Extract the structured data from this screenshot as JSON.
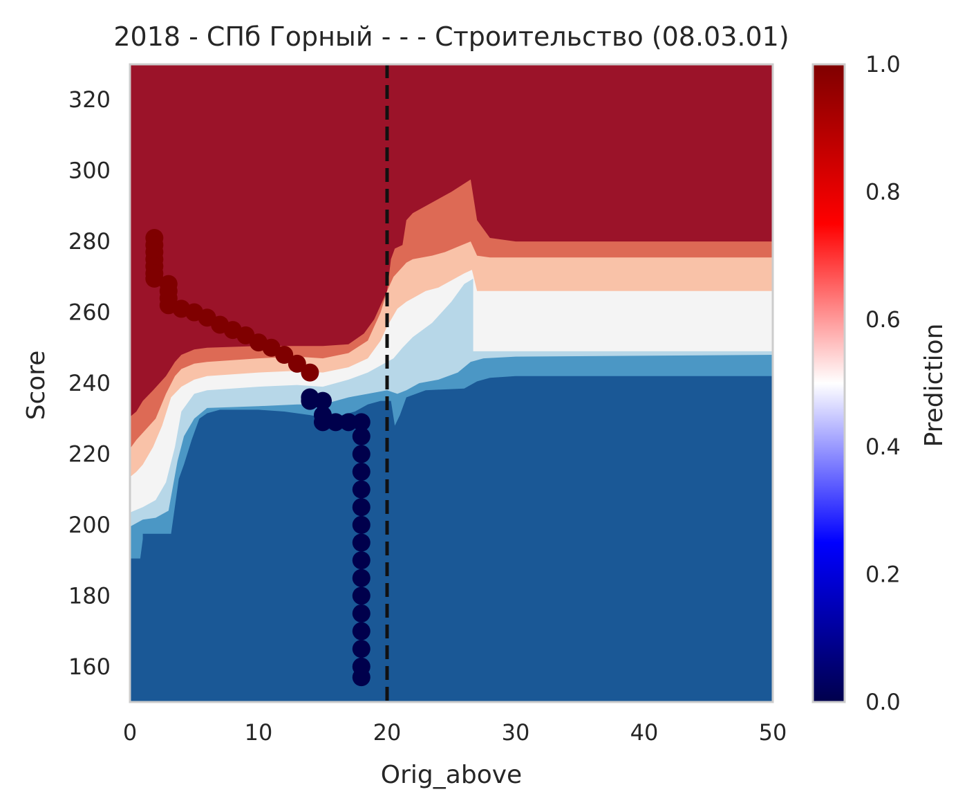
{
  "chart_data": {
    "type": "heatmap",
    "title": "2018 - СПб Горный - - - Строительство (08.03.01)",
    "xlabel": "Orig_above",
    "ylabel": "Score",
    "xlim": [
      0,
      50
    ],
    "ylim": [
      150,
      330
    ],
    "xticks": [
      0,
      10,
      20,
      30,
      40,
      50
    ],
    "yticks": [
      160,
      180,
      200,
      220,
      240,
      260,
      280,
      300,
      320
    ],
    "grid": false,
    "colorbar": {
      "label": "Prediction",
      "range": [
        0,
        1
      ],
      "ticks": [
        "0.0",
        "0.2",
        "0.4",
        "0.6",
        "0.8",
        "1.0"
      ],
      "colormap": "seismic"
    },
    "contour_levels": [
      0.125,
      0.25,
      0.375,
      0.5,
      0.625,
      0.75,
      0.875
    ],
    "contour_colors": [
      "#1a5896",
      "#4b97c5",
      "#b7d7e8",
      "#f4f4f4",
      "#f9c2a8",
      "#dd6a55",
      "#9b1329"
    ],
    "contour_boundaries": [
      {
        "name": "0.25",
        "points": [
          [
            0,
            190.5
          ],
          [
            0.8,
            190.5
          ],
          [
            1.0,
            196
          ],
          [
            1.0,
            197.5
          ],
          [
            3.2,
            197.5
          ],
          [
            3.8,
            213
          ],
          [
            4.2,
            217
          ],
          [
            4.8,
            224
          ],
          [
            5.4,
            230
          ],
          [
            6,
            231.5
          ],
          [
            7,
            232.5
          ],
          [
            10,
            232.5
          ],
          [
            12,
            232
          ],
          [
            14,
            231
          ],
          [
            15.5,
            230
          ],
          [
            17.5,
            232
          ],
          [
            18.5,
            234
          ],
          [
            19.5,
            235
          ],
          [
            20.3,
            235
          ],
          [
            20.6,
            228
          ],
          [
            21,
            231
          ],
          [
            21.5,
            236
          ],
          [
            23,
            238
          ],
          [
            26,
            238.5
          ],
          [
            27,
            240.5
          ],
          [
            28,
            241.5
          ],
          [
            30,
            242
          ],
          [
            50,
            242
          ]
        ]
      },
      {
        "name": "0.375",
        "points": [
          [
            0,
            199.5
          ],
          [
            1.0,
            201.5
          ],
          [
            2.0,
            202
          ],
          [
            3.0,
            204
          ],
          [
            3.7,
            218
          ],
          [
            4.2,
            225
          ],
          [
            5,
            230
          ],
          [
            6,
            233
          ],
          [
            10,
            233.5
          ],
          [
            13,
            234
          ],
          [
            15,
            234
          ],
          [
            17,
            236
          ],
          [
            18.5,
            237
          ],
          [
            20,
            238
          ],
          [
            20.8,
            237
          ],
          [
            21.5,
            238
          ],
          [
            22.5,
            240
          ],
          [
            24,
            241
          ],
          [
            25.5,
            243
          ],
          [
            26.5,
            246
          ],
          [
            27.5,
            247
          ],
          [
            30,
            247.5
          ],
          [
            50,
            248
          ]
        ]
      },
      {
        "name": "0.5",
        "points": [
          [
            0,
            203.5
          ],
          [
            1.0,
            205
          ],
          [
            2.0,
            207
          ],
          [
            2.8,
            212
          ],
          [
            3.5,
            222
          ],
          [
            4,
            232
          ],
          [
            5,
            237
          ],
          [
            6,
            238
          ],
          [
            10,
            239
          ],
          [
            13,
            239.5
          ],
          [
            15,
            239
          ],
          [
            17,
            241
          ],
          [
            18.5,
            243
          ],
          [
            19.5,
            245
          ],
          [
            20.5,
            247
          ],
          [
            21.2,
            250
          ],
          [
            22,
            253
          ],
          [
            23.5,
            257
          ],
          [
            25,
            263
          ],
          [
            26,
            268
          ],
          [
            26.7,
            269.5
          ],
          [
            26.7,
            249
          ],
          [
            30,
            249
          ],
          [
            50,
            249
          ]
        ]
      },
      {
        "name": "0.625",
        "points": [
          [
            0,
            213.5
          ],
          [
            0.5,
            215
          ],
          [
            1.0,
            217
          ],
          [
            1.8,
            222
          ],
          [
            2.5,
            228
          ],
          [
            3.2,
            236
          ],
          [
            4,
            239
          ],
          [
            5,
            241
          ],
          [
            6,
            242
          ],
          [
            10,
            243
          ],
          [
            13,
            243.5
          ],
          [
            15,
            243
          ],
          [
            17,
            244.5
          ],
          [
            18.5,
            247
          ],
          [
            19.5,
            252
          ],
          [
            20,
            256
          ],
          [
            20.8,
            261
          ],
          [
            21.5,
            263
          ],
          [
            22,
            264
          ],
          [
            23,
            266
          ],
          [
            24,
            267
          ],
          [
            25,
            269
          ],
          [
            26,
            271
          ],
          [
            26.6,
            272
          ],
          [
            27,
            266
          ],
          [
            28,
            266
          ],
          [
            30,
            266
          ],
          [
            50,
            266
          ]
        ]
      },
      {
        "name": "0.75",
        "points": [
          [
            0,
            221.5
          ],
          [
            0.5,
            224
          ],
          [
            1.0,
            226
          ],
          [
            2.0,
            230
          ],
          [
            2.8,
            237
          ],
          [
            3.5,
            242
          ],
          [
            4,
            244
          ],
          [
            5,
            245.5
          ],
          [
            6,
            246
          ],
          [
            10,
            247
          ],
          [
            13,
            247.5
          ],
          [
            15,
            247
          ],
          [
            17,
            248.5
          ],
          [
            18.5,
            252
          ],
          [
            19.5,
            260
          ],
          [
            20,
            266
          ],
          [
            20.5,
            270
          ],
          [
            21.5,
            274
          ],
          [
            22,
            275
          ],
          [
            23.5,
            276
          ],
          [
            24.5,
            277
          ],
          [
            25.5,
            278.5
          ],
          [
            26.5,
            280
          ],
          [
            27,
            276
          ],
          [
            28,
            275.5
          ],
          [
            30,
            275.5
          ],
          [
            50,
            275.5
          ]
        ]
      },
      {
        "name": "0.875",
        "points": [
          [
            0,
            230.5
          ],
          [
            0.5,
            232
          ],
          [
            1.0,
            235
          ],
          [
            1.8,
            238
          ],
          [
            2.8,
            242
          ],
          [
            3.5,
            246
          ],
          [
            4,
            248
          ],
          [
            5,
            249.5
          ],
          [
            6,
            250
          ],
          [
            10,
            250.5
          ],
          [
            13,
            250.5
          ],
          [
            15,
            250.5
          ],
          [
            17,
            251
          ],
          [
            18.2,
            254
          ],
          [
            19,
            258
          ],
          [
            19.5,
            262
          ],
          [
            20,
            266
          ],
          [
            20.3,
            275
          ],
          [
            20.6,
            278
          ],
          [
            21.2,
            279
          ],
          [
            21.5,
            286
          ],
          [
            22,
            288
          ],
          [
            23,
            290
          ],
          [
            24,
            292
          ],
          [
            25,
            294
          ],
          [
            26.5,
            297.5
          ],
          [
            27,
            286
          ],
          [
            28,
            281
          ],
          [
            30,
            280
          ],
          [
            50,
            280
          ]
        ]
      }
    ],
    "threshold_line": {
      "x": 20,
      "style": "dashed"
    },
    "scatter_points": {
      "high_series": [
        [
          1.9,
          281
        ],
        [
          1.9,
          279
        ],
        [
          1.9,
          277
        ],
        [
          1.9,
          275
        ],
        [
          1.9,
          273
        ],
        [
          1.9,
          271
        ],
        [
          1.9,
          269.5
        ],
        [
          3.0,
          268
        ],
        [
          3.0,
          266
        ],
        [
          3.0,
          264
        ],
        [
          3.0,
          262
        ],
        [
          4.0,
          261
        ],
        [
          5.0,
          260
        ],
        [
          6.0,
          258.5
        ],
        [
          7.0,
          256.5
        ],
        [
          8.0,
          255
        ],
        [
          9.0,
          253.5
        ],
        [
          10.0,
          251.5
        ],
        [
          11.0,
          250
        ],
        [
          12.0,
          248
        ],
        [
          13.0,
          245.5
        ],
        [
          14.0,
          243
        ]
      ],
      "low_series": [
        [
          14.0,
          236
        ],
        [
          14.0,
          235
        ],
        [
          15.0,
          235
        ],
        [
          15.0,
          231
        ],
        [
          15.0,
          229
        ],
        [
          16.0,
          229
        ],
        [
          17.0,
          229
        ],
        [
          18.0,
          229
        ],
        [
          18.0,
          225
        ],
        [
          18.0,
          220
        ],
        [
          18.0,
          215
        ],
        [
          18.0,
          210
        ],
        [
          18.0,
          205
        ],
        [
          18.0,
          200
        ],
        [
          18.0,
          195
        ],
        [
          18.0,
          190
        ],
        [
          18.0,
          185
        ],
        [
          18.0,
          180
        ],
        [
          18.0,
          175
        ],
        [
          18.0,
          170
        ],
        [
          18.0,
          165
        ],
        [
          18.0,
          160
        ],
        [
          18.0,
          157
        ]
      ],
      "high_color": "#7f0000",
      "low_color": "#00004c"
    }
  }
}
